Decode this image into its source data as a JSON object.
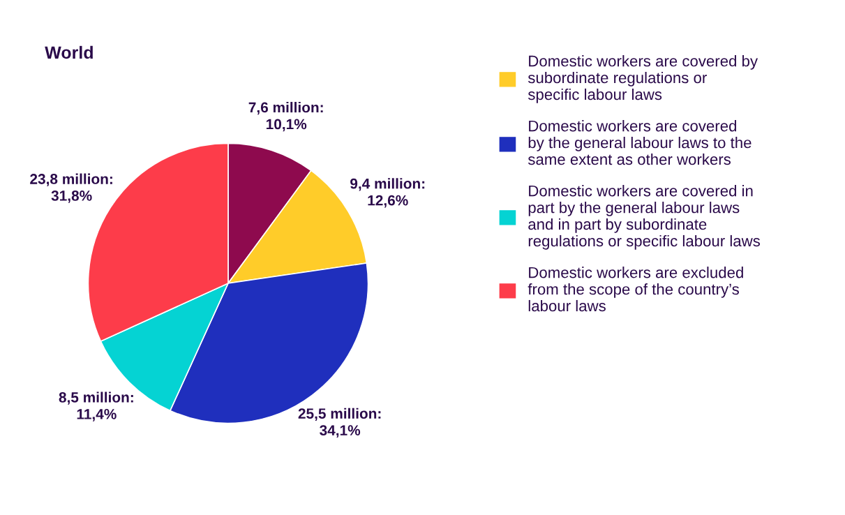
{
  "chart_data": {
    "type": "pie",
    "title": "World",
    "categories": [
      null,
      "Domestic workers are covered by\nsubordinate regulations or\nspecific labour laws",
      "Domestic workers are covered\nby the general labour laws to the\nsame extent as other workers",
      "Domestic workers are covered in\npart by the general labour laws\nand in part by subordinate\nregulations or specific labour laws",
      "Domestic workers are excluded\nfrom the scope of the country’s\nlabour laws"
    ],
    "values": [
      10.1,
      12.6,
      34.1,
      11.4,
      31.8
    ],
    "value_labels": [
      "7,6 million:\n10,1%",
      "9,4 million:\n12,6%",
      "25,5 million:\n34,1%",
      "8,5 million:\n11,4%",
      "23,8 million:\n31,8%"
    ],
    "colors": [
      "#8e0a4e",
      "#ffcc29",
      "#1f2fbd",
      "#05d3d3",
      "#fd3c4a"
    ],
    "legend": "right"
  }
}
